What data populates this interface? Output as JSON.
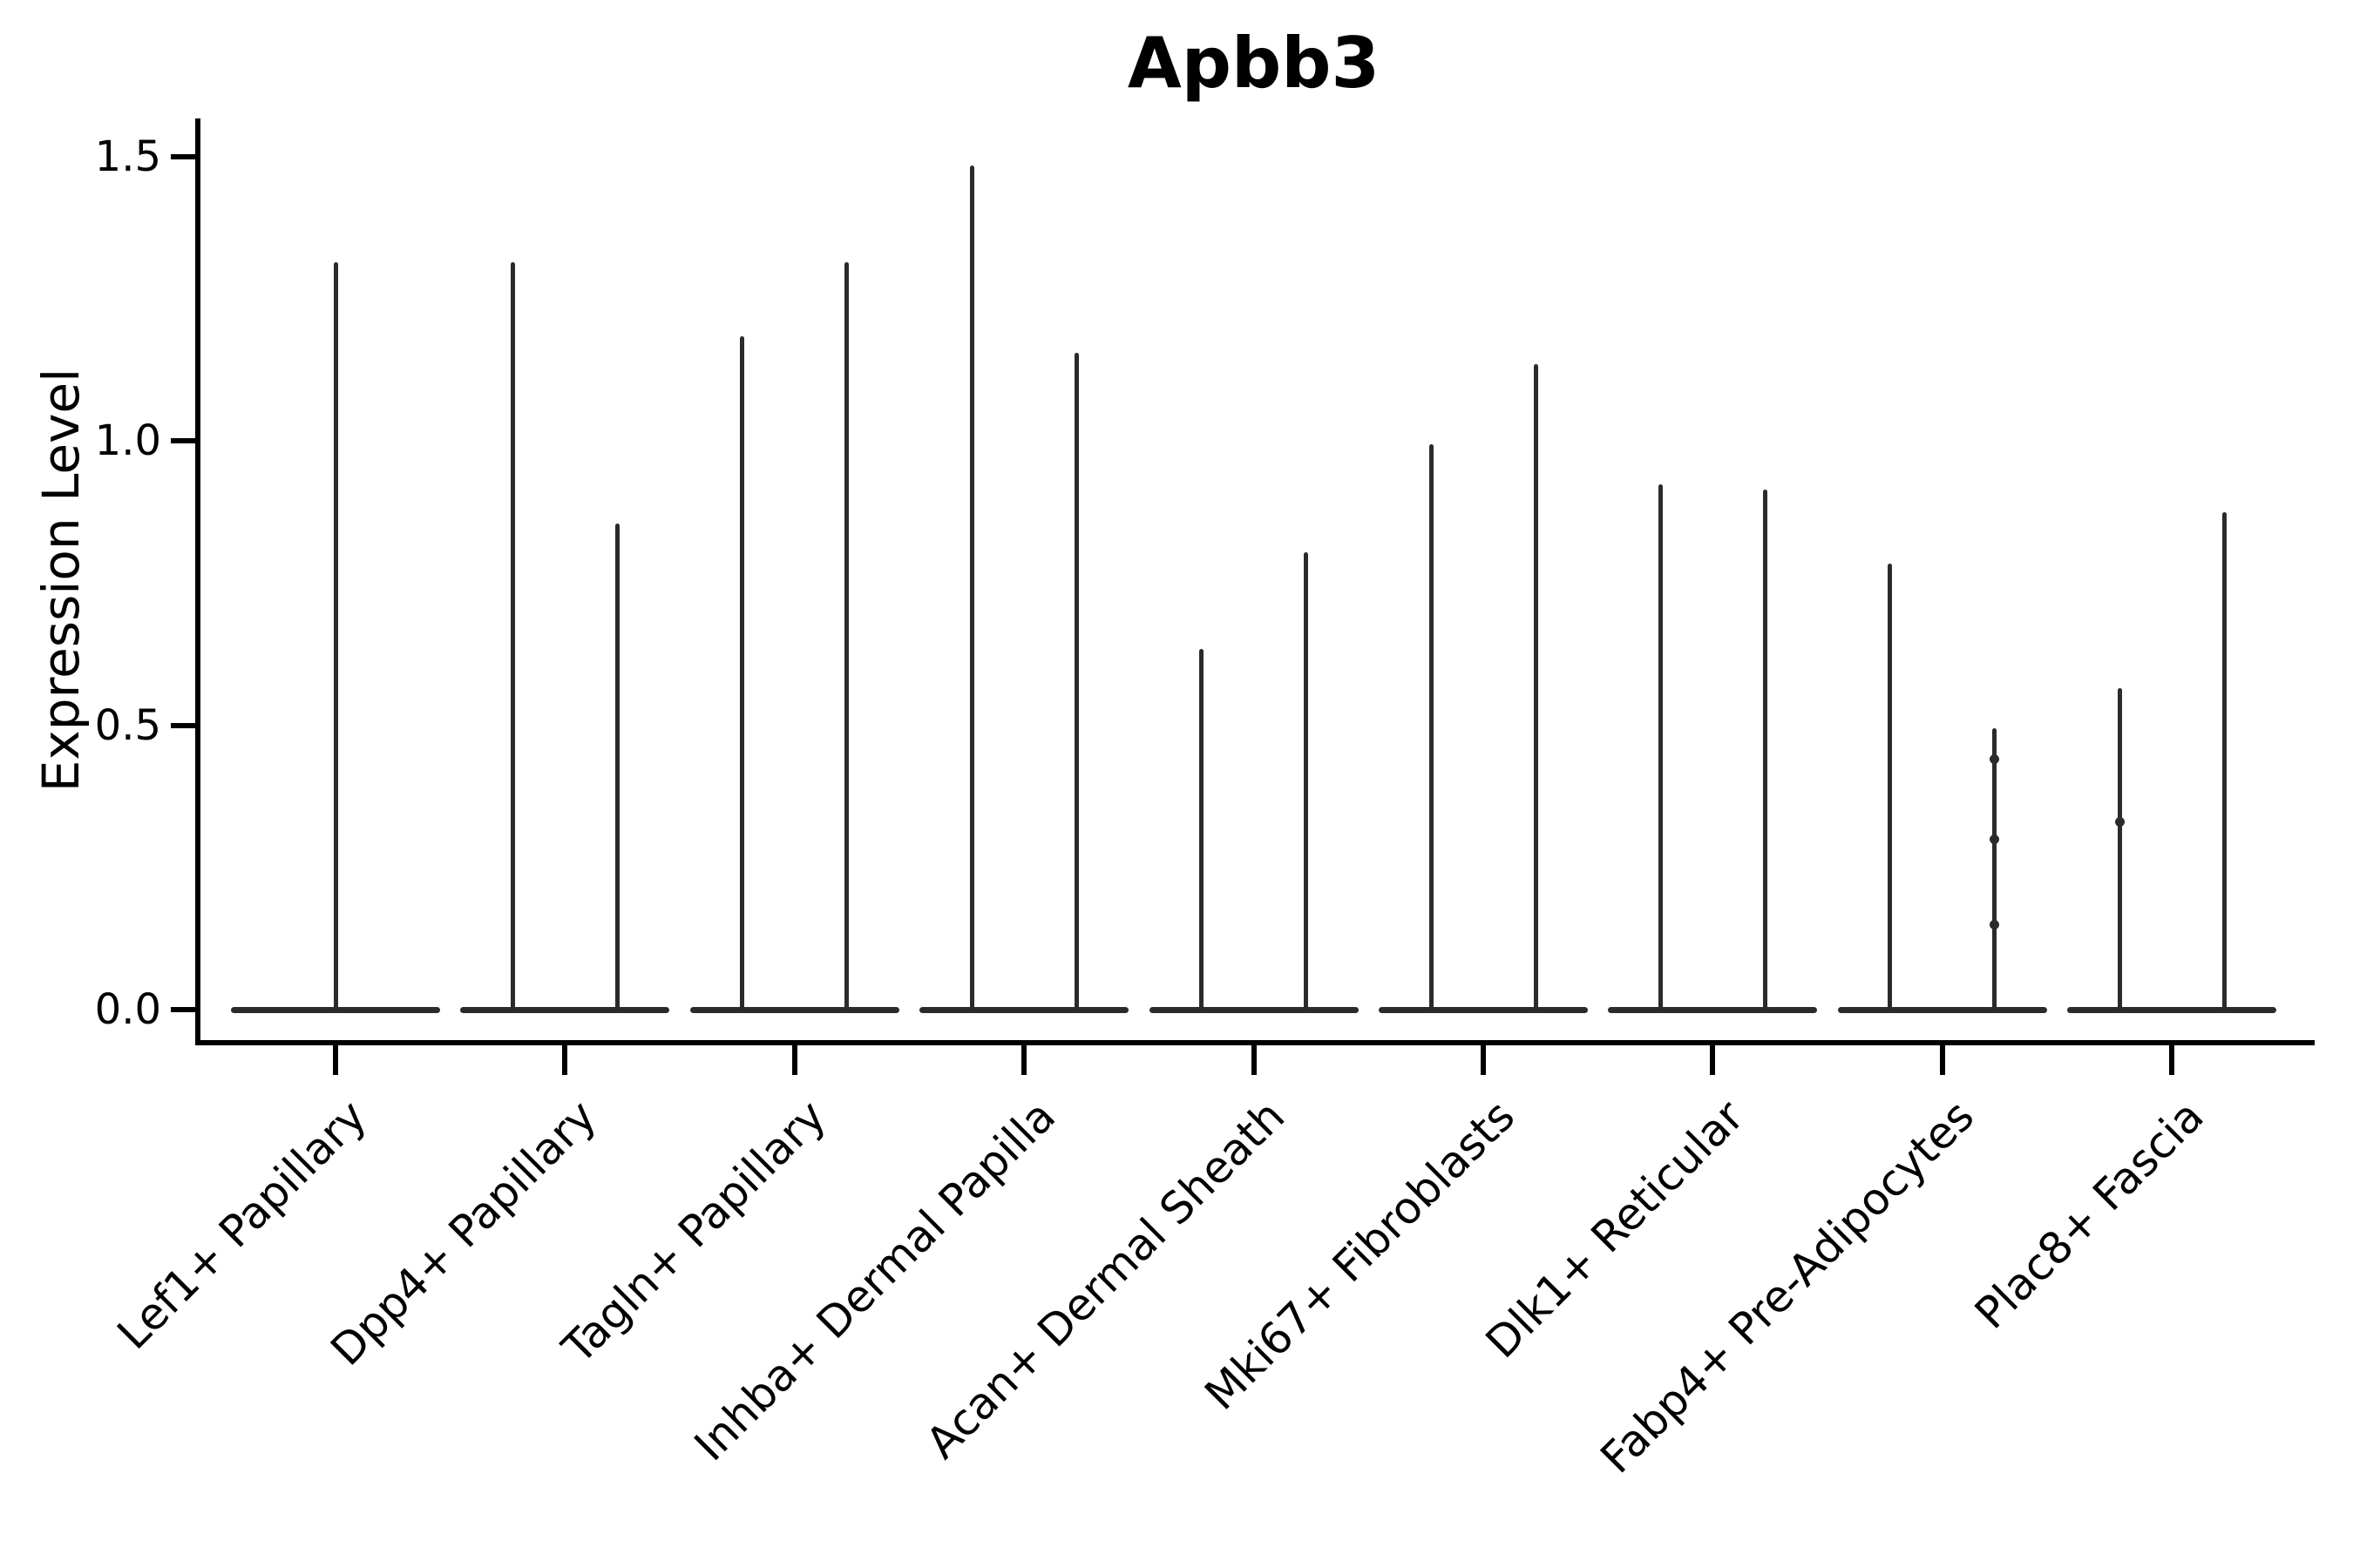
{
  "chart_data": {
    "type": "violin",
    "title": "Apbb3",
    "xlabel": "",
    "ylabel": "Expression Level",
    "grid": false,
    "legend": "none",
    "ylim": [
      -0.06,
      1.57
    ],
    "yticks": [
      {
        "value": 0.0,
        "label": "0.0"
      },
      {
        "value": 0.5,
        "label": "0.5"
      },
      {
        "value": 1.0,
        "label": "1.0"
      },
      {
        "value": 1.5,
        "label": "1.5"
      }
    ],
    "categories": [
      {
        "label": "Lef1+ Papillary",
        "violins": [
          {
            "side": "center",
            "min": 0,
            "max": 1.31,
            "points": []
          }
        ]
      },
      {
        "label": "Dpp4+ Papillary",
        "violins": [
          {
            "side": "left",
            "min": 0,
            "max": 1.31,
            "points": []
          },
          {
            "side": "right",
            "min": 0,
            "max": 0.85,
            "points": []
          }
        ]
      },
      {
        "label": "Tagln+ Papillary",
        "violins": [
          {
            "side": "left",
            "min": 0,
            "max": 1.18,
            "points": []
          },
          {
            "side": "right",
            "min": 0,
            "max": 1.31,
            "points": []
          }
        ]
      },
      {
        "label": "Inhba+ Dermal Papilla",
        "violins": [
          {
            "side": "left",
            "min": 0,
            "max": 1.48,
            "points": []
          },
          {
            "side": "right",
            "min": 0,
            "max": 1.15,
            "points": []
          }
        ]
      },
      {
        "label": "Acan+ Dermal Sheath",
        "violins": [
          {
            "side": "left",
            "min": 0,
            "max": 0.63,
            "points": []
          },
          {
            "side": "right",
            "min": 0,
            "max": 0.8,
            "points": []
          }
        ]
      },
      {
        "label": "Mki67+ Fibroblasts",
        "violins": [
          {
            "side": "left",
            "min": 0,
            "max": 0.99,
            "points": []
          },
          {
            "side": "right",
            "min": 0,
            "max": 1.13,
            "points": []
          }
        ]
      },
      {
        "label": "Dlk1+ Reticular",
        "violins": [
          {
            "side": "left",
            "min": 0,
            "max": 0.92,
            "points": []
          },
          {
            "side": "right",
            "min": 0,
            "max": 0.91,
            "points": []
          }
        ]
      },
      {
        "label": "Fabp4+ Pre-Adipocytes",
        "violins": [
          {
            "side": "left",
            "min": 0,
            "max": 0.78,
            "points": []
          },
          {
            "side": "right",
            "min": 0,
            "max": 0.49,
            "points": [
              0.44,
              0.3,
              0.15
            ]
          }
        ]
      },
      {
        "label": "Plac8+ Fascia",
        "violins": [
          {
            "side": "left",
            "min": 0,
            "max": 0.56,
            "points": [
              0.33
            ]
          },
          {
            "side": "right",
            "min": 0,
            "max": 0.87,
            "points": []
          }
        ]
      }
    ],
    "colors": {
      "violin_line": "#2b2b2b",
      "axis": "#000000",
      "text": "#000000",
      "background": "#ffffff"
    }
  }
}
